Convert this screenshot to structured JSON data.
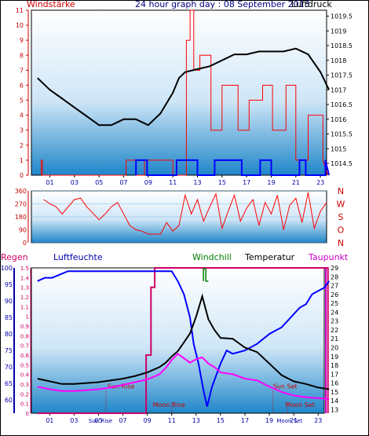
{
  "header": {
    "title": "24 hour graph day : 08 September 2013",
    "left_label": "Windstärke",
    "right_label": "Luftdruck"
  },
  "chart_data": [
    {
      "type": "line",
      "name": "wind-and-pressure",
      "xticks": [
        "01",
        "03",
        "05",
        "07",
        "09",
        "11",
        "13",
        "15",
        "17",
        "19",
        "21",
        "23"
      ],
      "wind_axis": {
        "label": "Windstärke",
        "ticks": [
          0,
          1,
          2,
          3,
          4,
          5,
          6,
          7,
          8,
          9,
          10,
          11
        ],
        "ylim": [
          0,
          11
        ]
      },
      "pressure_axis": {
        "label": "Luftdruck",
        "ticks": [
          "1014.5",
          "1015",
          "1015.5",
          "1016",
          "1016.5",
          "1017",
          "1017.5",
          "1018",
          "1018.5",
          "1019",
          "1019.5"
        ],
        "ylim": [
          1014.1,
          1019.7
        ]
      },
      "pressure": {
        "x": [
          0,
          1,
          2,
          3,
          4,
          5,
          6,
          7,
          8,
          9,
          10,
          11,
          11.5,
          12,
          13,
          14,
          15,
          16,
          17,
          18,
          19,
          20,
          21,
          22,
          23,
          23.7
        ],
        "y": [
          1017.4,
          1017.0,
          1016.7,
          1016.4,
          1016.1,
          1015.8,
          1015.8,
          1016.0,
          1016.0,
          1015.8,
          1016.2,
          1016.9,
          1017.4,
          1017.6,
          1017.7,
          1017.8,
          1018.0,
          1018.2,
          1018.2,
          1018.3,
          1018.3,
          1018.3,
          1018.4,
          1018.2,
          1017.6,
          1017.0
        ]
      },
      "wind_gust": {
        "x": [
          0.3,
          0.3,
          0.4,
          0.4,
          7.2,
          7.2,
          8.0,
          8.0,
          8.7,
          8.7,
          11.0,
          11.0,
          12.1,
          12.1,
          12.4,
          12.4,
          12.7,
          12.7,
          13.2,
          13.2,
          14.1,
          14.1,
          15.0,
          15.0,
          16.3,
          16.3,
          17.2,
          17.2,
          18.3,
          18.3,
          19.1,
          19.1,
          20.2,
          20.2,
          21.0,
          21.0,
          22.0,
          22.0,
          23.2,
          23.2,
          23.6
        ],
        "y": [
          0,
          1,
          1,
          0,
          0,
          1,
          1,
          0,
          0,
          1,
          1,
          0,
          0,
          9,
          9,
          11,
          11,
          7,
          7,
          8,
          8,
          3,
          3,
          6,
          6,
          3,
          3,
          5,
          5,
          6,
          6,
          3,
          3,
          6,
          6,
          1,
          1,
          4,
          4,
          1,
          0
        ]
      },
      "wind_avg": {
        "x": [
          8.0,
          8.0,
          8.9,
          8.9,
          11.3,
          11.3,
          13.0,
          13.0,
          14.4,
          14.4,
          16.6,
          16.6,
          18.1,
          18.1,
          19.0,
          19.0,
          21.3,
          21.3,
          21.8,
          21.8,
          23.4,
          23.4,
          23.7
        ],
        "y": [
          0,
          1,
          1,
          0,
          0,
          1,
          1,
          0,
          0,
          1,
          1,
          0,
          0,
          1,
          1,
          0,
          0,
          1,
          1,
          0,
          0,
          1,
          0
        ]
      }
    },
    {
      "type": "line",
      "name": "wind-direction",
      "xticks": [
        "01",
        "03",
        "05",
        "07",
        "09",
        "11",
        "13",
        "15",
        "17",
        "19",
        "21",
        "23"
      ],
      "yticks": [
        0,
        90,
        180,
        270,
        360
      ],
      "ylim": [
        0,
        360
      ],
      "compass": [
        "N",
        "W",
        "S",
        "O",
        "N"
      ],
      "direction": {
        "x": [
          0.5,
          1.0,
          1.5,
          2.0,
          3.0,
          3.5,
          4.0,
          5.0,
          5.5,
          6.0,
          6.5,
          7.0,
          7.5,
          8.0,
          8.5,
          9.0,
          10.0,
          10.5,
          11.0,
          11.5,
          12.0,
          12.5,
          13.0,
          13.5,
          14.0,
          14.5,
          15.0,
          15.5,
          16.0,
          16.5,
          17.0,
          17.5,
          18.0,
          18.5,
          19.0,
          19.5,
          20.0,
          20.5,
          21.0,
          21.5,
          22.0,
          22.5,
          23.0,
          23.5
        ],
        "y": [
          300,
          270,
          250,
          200,
          300,
          310,
          250,
          160,
          200,
          250,
          280,
          200,
          120,
          90,
          80,
          60,
          60,
          140,
          80,
          120,
          330,
          200,
          300,
          150,
          250,
          340,
          100,
          220,
          330,
          150,
          240,
          300,
          120,
          280,
          200,
          330,
          90,
          260,
          310,
          140,
          350,
          100,
          220,
          280
        ]
      }
    },
    {
      "type": "line",
      "name": "humidity-and-temperature",
      "xticks": [
        "01",
        "03",
        "05",
        "07",
        "09",
        "11",
        "13",
        "15",
        "17",
        "19",
        "21",
        "23"
      ],
      "humidity_axis": {
        "label": "Luftfeuchte",
        "ticks": [
          60,
          65,
          70,
          75,
          80,
          85,
          90,
          95,
          100
        ],
        "ylim": [
          56,
          100
        ]
      },
      "rain_axis": {
        "label": "Regen",
        "ticks": [
          "0",
          "0.1",
          "0.2",
          "0.3",
          "0.4",
          "0.5",
          "0.6",
          "0.7",
          "0.8",
          "0.9",
          "1",
          "1.1",
          "1.2",
          "1.3",
          "1.4",
          "1.5"
        ],
        "ylim": [
          0,
          1.5
        ]
      },
      "temperature_axis": {
        "label": "Temperatur",
        "ticks": [
          13,
          14,
          15,
          16,
          17,
          18,
          19,
          20,
          21,
          22,
          23,
          24,
          25,
          26,
          27,
          28,
          29
        ],
        "ylim": [
          12.6,
          29
        ]
      },
      "legend": {
        "windchill": "Windchill",
        "temperature": "Temperatur",
        "dewpoint": "Taupunkt"
      },
      "annotations": {
        "sun_rise": "Sun Rise",
        "sun_set": "Sun Set",
        "moon_rise": "Moon Rise",
        "moon_set": "Moon Set",
        "axis_sun_rise": "Sun Rise",
        "axis_moon_set": "Moon Set"
      },
      "humidity": {
        "x": [
          0,
          0.6,
          1.2,
          2.5,
          3,
          8,
          11,
          11.5,
          12,
          12.5,
          12.8,
          13.2,
          13.6,
          13.9,
          14.3,
          15,
          15.5,
          16,
          17,
          18,
          19,
          19.5,
          20,
          20.5,
          21,
          21.5,
          22,
          22.5,
          23,
          23.5,
          23.9
        ],
        "y": [
          96,
          97,
          97,
          99,
          99,
          99,
          99,
          96,
          92,
          85,
          77,
          71,
          63,
          58,
          64,
          71,
          75,
          74,
          75,
          77,
          80,
          81,
          82,
          84,
          86,
          88,
          89,
          92,
          93,
          94,
          96
        ]
      },
      "temperature": {
        "x": [
          0,
          1,
          2,
          3,
          4,
          5,
          6,
          7,
          8,
          9,
          10,
          10.5,
          11,
          11.5,
          12,
          12.5,
          13,
          13.5,
          14,
          14.5,
          15,
          16,
          17,
          18,
          19,
          20,
          21,
          22,
          23,
          23.9
        ],
        "y": [
          16.5,
          16.2,
          15.9,
          15.9,
          16.0,
          16.1,
          16.3,
          16.5,
          16.8,
          17.2,
          17.8,
          18.3,
          19.0,
          19.6,
          20.6,
          21.6,
          23.5,
          25.8,
          23.2,
          22.0,
          21.1,
          21.0,
          20.0,
          19.5,
          18.2,
          16.9,
          16.2,
          15.9,
          15.5,
          15.3
        ]
      },
      "dewpoint": {
        "x": [
          0,
          1,
          2,
          3,
          4,
          5,
          6,
          7,
          8,
          9,
          10,
          10.5,
          11,
          11.5,
          12,
          12.5,
          13,
          13.5,
          14,
          14.5,
          15,
          16,
          17,
          18,
          19,
          20,
          21,
          22,
          23,
          23.9
        ],
        "y": [
          15.6,
          15.3,
          15.1,
          15.1,
          15.2,
          15.3,
          15.5,
          15.8,
          16.1,
          16.4,
          17.0,
          17.7,
          18.6,
          19.3,
          18.8,
          18.3,
          18.7,
          18.9,
          18.2,
          17.8,
          17.2,
          17.0,
          16.5,
          16.3,
          15.6,
          15.0,
          14.6,
          14.4,
          14.3,
          14.2
        ]
      },
      "windchill": {
        "x": [
          13.6,
          13.6,
          13.8,
          13.8,
          14.0
        ],
        "y": [
          27.5,
          28.9,
          28.9,
          27.5,
          27.5
        ]
      },
      "rain": {
        "x": [
          0,
          8.9,
          8.9,
          9.3,
          9.3,
          9.6,
          9.6,
          23.8,
          23.8
        ],
        "y": [
          0,
          0,
          0.6,
          0.6,
          1.3,
          1.3,
          1.5,
          1.5,
          0
        ]
      },
      "sun_rise_hour": 5.6,
      "sun_set_hour": 19.3,
      "moon_rise_hour": 11.0,
      "moon_set_hour": 20.5
    }
  ],
  "colors": {
    "wind_gust": "#ff0000",
    "wind_avg": "#0000ff",
    "pressure": "#000000",
    "direction": "#ff0000",
    "humidity": "#0000ff",
    "temperature": "#000000",
    "dewpoint": "#ff00ff",
    "windchill": "#008000",
    "rain": "#cc0066",
    "sun_moon_text": "#cc0000",
    "axis_red": "#cc0000",
    "axis_blue": "#0000aa"
  }
}
